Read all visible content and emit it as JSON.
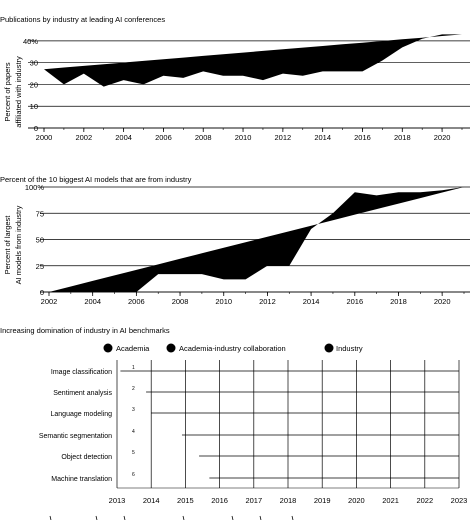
{
  "chart_data": [
    {
      "type": "area",
      "title": "Publications by industry at leading AI conferences",
      "ylabel": [
        "Percent of papers",
        "affiliated with industry"
      ],
      "x": [
        2000,
        2001,
        2002,
        2003,
        2004,
        2005,
        2006,
        2007,
        2008,
        2009,
        2010,
        2011,
        2012,
        2013,
        2014,
        2015,
        2016,
        2017,
        2018,
        2019,
        2020,
        2021
      ],
      "series": [
        {
          "name": "",
          "values": [
            27,
            20,
            25,
            19,
            22,
            20,
            24,
            23,
            26,
            24,
            24,
            22,
            25,
            24,
            26,
            26,
            26,
            31,
            37,
            41,
            43,
            43
          ]
        }
      ],
      "trend": {
        "start": 27,
        "end": 43
      },
      "y_ticks": [
        "0",
        "10",
        "20",
        "30",
        "40%"
      ],
      "x_ticks": [
        "2000",
        "2002",
        "2004",
        "2006",
        "2008",
        "2010",
        "2012",
        "2014",
        "2016",
        "2018",
        "2020"
      ],
      "xlim": [
        2000,
        2021
      ],
      "ylim": [
        0,
        45
      ],
      "grid": true
    },
    {
      "type": "area",
      "title": "Percent of the 10 biggest AI models that are from industry",
      "ylabel": [
        "Percent of largest",
        "AI models from industry"
      ],
      "x": [
        2002,
        2003,
        2004,
        2005,
        2006,
        2007,
        2008,
        2009,
        2010,
        2011,
        2012,
        2013,
        2014,
        2015,
        2016,
        2017,
        2018,
        2019,
        2020,
        2021
      ],
      "series": [
        {
          "name": "",
          "values": [
            0,
            0,
            0,
            0,
            0,
            17,
            17,
            17,
            12,
            12,
            25,
            25,
            60,
            75,
            95,
            92,
            95,
            95,
            97,
            100
          ]
        }
      ],
      "trend": {
        "start": 0,
        "end": 100
      },
      "y_ticks": [
        "0",
        "25",
        "50",
        "75",
        "100%"
      ],
      "x_ticks": [
        "2002",
        "2004",
        "2006",
        "2008",
        "2010",
        "2012",
        "2014",
        "2016",
        "2018",
        "2020"
      ],
      "xlim": [
        2002,
        2021
      ],
      "ylim": [
        0,
        100
      ],
      "grid": true
    },
    {
      "type": "timeline",
      "title": "Increasing domination of industry in AI benchmarks",
      "legend": [
        "Academia",
        "Academia-industry collaboration",
        "Industry"
      ],
      "categories": [
        {
          "label": "Image classification",
          "index": "1",
          "start": 2013.1
        },
        {
          "label": "Sentiment analysis",
          "index": "2",
          "start": 2013.85
        },
        {
          "label": "Language modeling",
          "index": "3",
          "start": 2014.0
        },
        {
          "label": "Semantic segmentation",
          "index": "4",
          "start": 2014.9
        },
        {
          "label": "Object detection",
          "index": "5",
          "start": 2015.4
        },
        {
          "label": "Machine translation",
          "index": "6",
          "start": 2015.7
        }
      ],
      "x_ticks": [
        "2013",
        "2014",
        "2015",
        "2016",
        "2017",
        "2018",
        "2019",
        "2020",
        "2021",
        "2022",
        "2023"
      ],
      "xlim": [
        2013,
        2023
      ],
      "grid": true
    }
  ]
}
